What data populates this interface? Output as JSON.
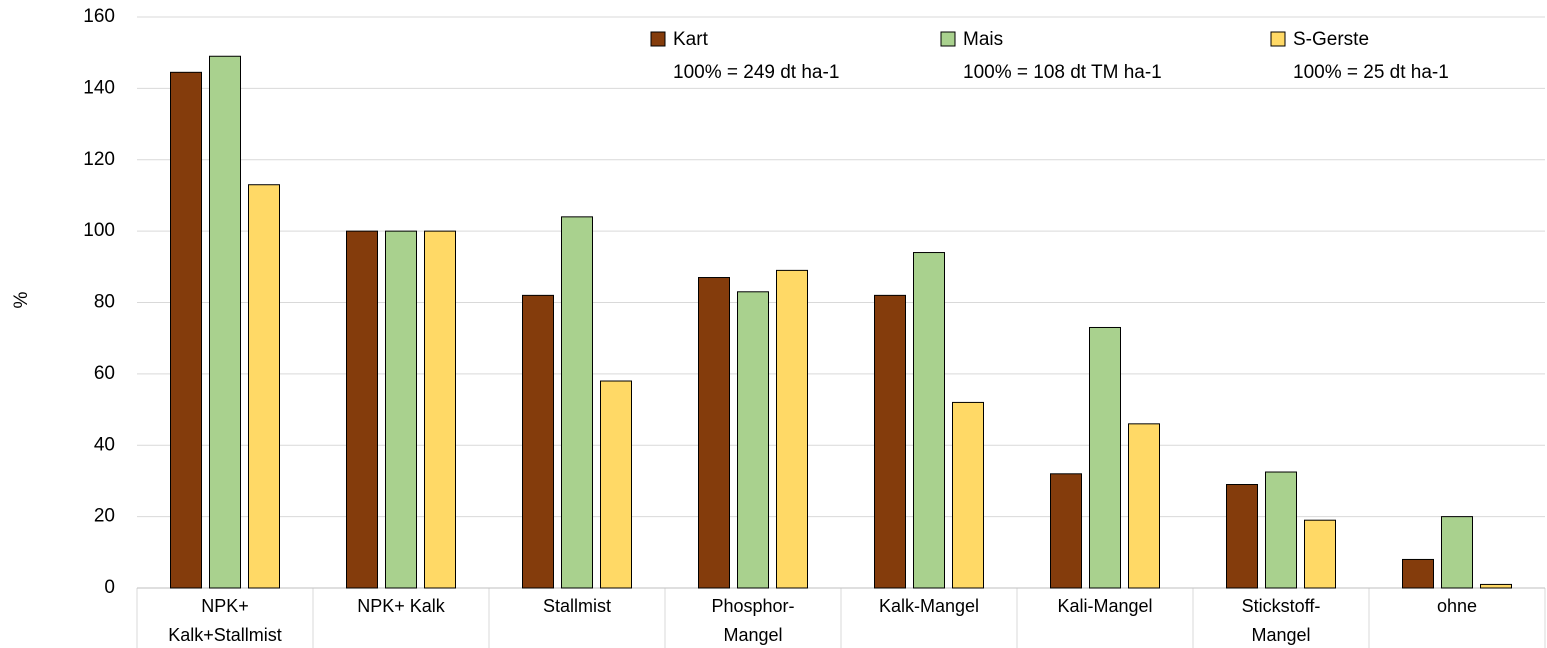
{
  "chart_data": {
    "type": "bar",
    "y_label": "%",
    "categories": [
      "NPK+\nKalk+Stallmist",
      "NPK+ Kalk",
      "Stallmist",
      "Phosphor-\nMangel",
      "Kalk-Mangel",
      "Kali-Mangel",
      "Stickstoff-\nMangel",
      "ohne"
    ],
    "series": [
      {
        "name": "Kart",
        "note": "100% = 249 dt ha-1",
        "color": "#843c0c",
        "values": [
          144.5,
          100,
          82,
          87,
          82,
          32,
          29,
          8
        ]
      },
      {
        "name": "Mais",
        "note": "100% = 108 dt TM ha-1",
        "color": "#a9d18e",
        "values": [
          149,
          100,
          104,
          83,
          94,
          73,
          32.5,
          20
        ]
      },
      {
        "name": "S-Gerste",
        "note": "100% = 25 dt ha-1",
        "color": "#ffd966",
        "values": [
          113,
          100,
          58,
          89,
          52,
          46,
          19,
          1
        ]
      }
    ],
    "ylim": [
      0,
      160
    ],
    "yticks": [
      0,
      20,
      40,
      60,
      80,
      100,
      120,
      140,
      160
    ],
    "grid": true
  }
}
